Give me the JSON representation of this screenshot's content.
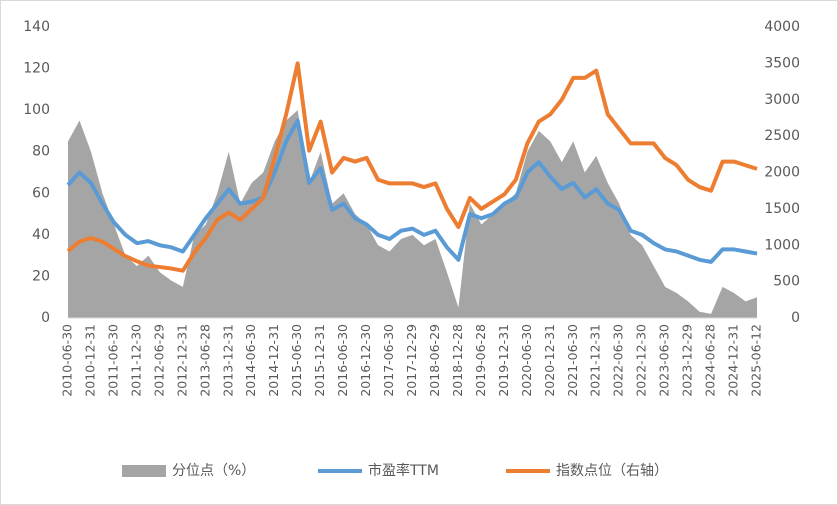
{
  "chart_data": {
    "type": "line",
    "categories": [
      "2010-06-30",
      null,
      "2010-12-31",
      null,
      "2011-06-30",
      null,
      "2011-12-30",
      null,
      "2012-06-29",
      null,
      "2012-12-31",
      null,
      "2013-06-28",
      null,
      "2013-12-31",
      null,
      "2014-06-30",
      null,
      "2014-12-31",
      null,
      "2015-06-30",
      null,
      "2015-12-31",
      null,
      "2016-06-30",
      null,
      "2016-12-30",
      null,
      "2017-06-30",
      null,
      "2017-12-29",
      null,
      "2018-06-29",
      null,
      "2018-12-28",
      null,
      "2019-06-28",
      null,
      "2019-12-31",
      null,
      "2020-06-30",
      null,
      "2020-12-31",
      null,
      "2021-06-30",
      null,
      "2021-12-31",
      null,
      "2022-06-30",
      null,
      "2022-12-30",
      null,
      "2023-06-30",
      null,
      "2023-12-29",
      null,
      "2024-06-28",
      null,
      "2024-12-31",
      null,
      "2025-06-12"
    ],
    "series": [
      {
        "name": "分位点（%）",
        "color": "#a5a5a5",
        "kind": "area",
        "values": [
          85,
          95,
          80,
          60,
          45,
          30,
          25,
          30,
          22,
          18,
          15,
          40,
          45,
          60,
          80,
          55,
          65,
          70,
          85,
          95,
          100,
          65,
          80,
          55,
          60,
          50,
          45,
          35,
          32,
          38,
          40,
          35,
          38,
          22,
          5,
          55,
          45,
          50,
          55,
          60,
          80,
          90,
          85,
          75,
          85,
          70,
          78,
          65,
          55,
          40,
          35,
          25,
          15,
          12,
          8,
          3,
          2,
          15,
          12,
          8,
          10
        ]
      },
      {
        "name": "市盈率TTM",
        "color": "#5b9bd5",
        "kind": "line",
        "values": [
          64,
          70,
          65,
          55,
          46,
          40,
          36,
          37,
          35,
          34,
          32,
          40,
          48,
          55,
          62,
          55,
          56,
          58,
          70,
          85,
          95,
          65,
          72,
          52,
          55,
          48,
          45,
          40,
          38,
          42,
          43,
          40,
          42,
          34,
          28,
          50,
          48,
          50,
          55,
          58,
          70,
          75,
          68,
          62,
          65,
          58,
          62,
          55,
          52,
          42,
          40,
          36,
          33,
          32,
          30,
          28,
          27,
          33,
          33,
          32,
          31
        ]
      },
      {
        "name": "指数点位（右轴）",
        "color": "#ed7d31",
        "kind": "line",
        "axis": "y2",
        "values": [
          920,
          1050,
          1100,
          1050,
          950,
          850,
          780,
          720,
          700,
          680,
          650,
          900,
          1100,
          1350,
          1450,
          1350,
          1500,
          1650,
          2200,
          2800,
          3500,
          2300,
          2700,
          2000,
          2200,
          2150,
          2200,
          1900,
          1850,
          1850,
          1850,
          1800,
          1850,
          1500,
          1250,
          1650,
          1500,
          1600,
          1700,
          1900,
          2400,
          2700,
          2800,
          3000,
          3300,
          3300,
          3400,
          2800,
          2600,
          2400,
          2400,
          2400,
          2200,
          2100,
          1900,
          1800,
          1750,
          2150,
          2150,
          2100,
          2050
        ]
      }
    ],
    "ylim": [
      0,
      140
    ],
    "yticks": [
      0,
      20,
      40,
      60,
      80,
      100,
      120,
      140
    ],
    "y2lim": [
      0,
      4000
    ],
    "y2ticks": [
      0,
      500,
      1000,
      1500,
      2000,
      2500,
      3000,
      3500,
      4000
    ],
    "legend": "bottom"
  }
}
